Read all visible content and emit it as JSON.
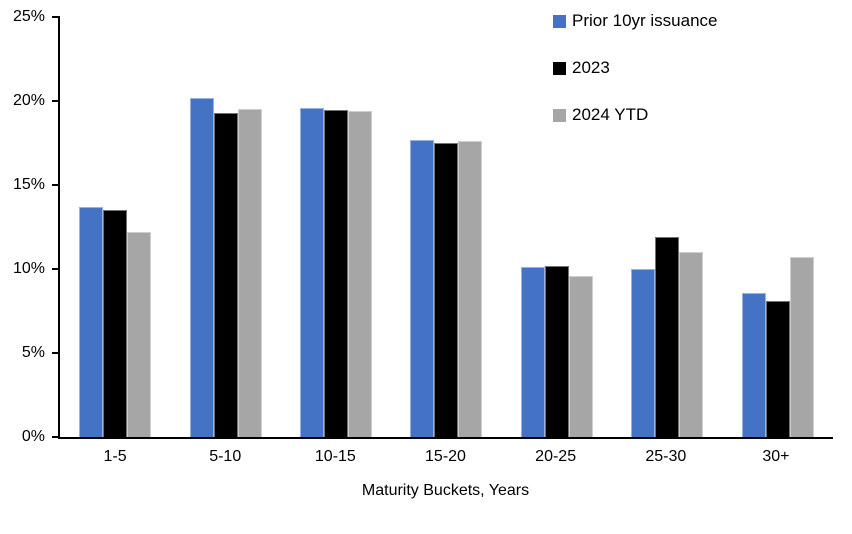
{
  "chart_data": {
    "type": "bar",
    "title": "",
    "xlabel": "Maturity Buckets, Years",
    "ylabel": "",
    "ylim": [
      0,
      25
    ],
    "grid": false,
    "legend_position": "top-right-inside",
    "yticks": [
      {
        "value": 0,
        "label": "0%"
      },
      {
        "value": 5,
        "label": "5%"
      },
      {
        "value": 10,
        "label": "10%"
      },
      {
        "value": 15,
        "label": "15%"
      },
      {
        "value": 20,
        "label": "20%"
      },
      {
        "value": 25,
        "label": "25%"
      }
    ],
    "categories": [
      "1-5",
      "5-10",
      "10-15",
      "15-20",
      "20-25",
      "25-30",
      "30+"
    ],
    "series": [
      {
        "name": "Prior 10yr issuance",
        "color": "#4472C4",
        "values": [
          13.7,
          20.2,
          19.6,
          17.7,
          10.1,
          10.0,
          8.6
        ]
      },
      {
        "name": "2023",
        "color": "#000000",
        "values": [
          13.5,
          19.3,
          19.45,
          17.5,
          10.2,
          11.9,
          8.1
        ]
      },
      {
        "name": "2024 YTD",
        "color": "#A6A6A6",
        "values": [
          12.2,
          19.5,
          19.4,
          17.6,
          9.6,
          11.0,
          10.7
        ]
      }
    ]
  }
}
